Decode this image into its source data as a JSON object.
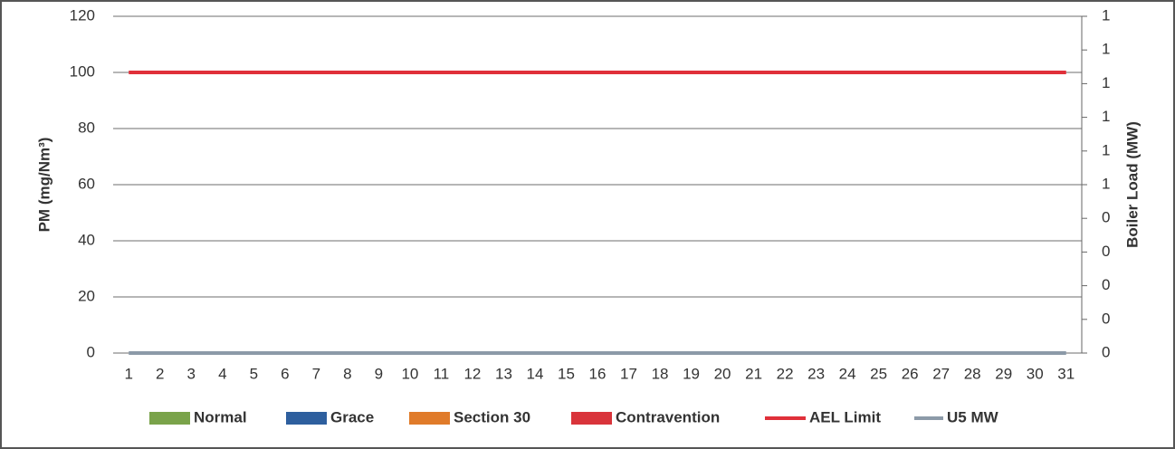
{
  "chart_data": {
    "type": "bar",
    "y_label": "PM (mg/Nm³)",
    "y2_label": "Boiler Load (MW)",
    "categories": [
      "1",
      "2",
      "3",
      "4",
      "5",
      "6",
      "7",
      "8",
      "9",
      "10",
      "11",
      "12",
      "13",
      "14",
      "15",
      "16",
      "17",
      "18",
      "19",
      "20",
      "21",
      "22",
      "23",
      "24",
      "25",
      "26",
      "27",
      "28",
      "29",
      "30",
      "31"
    ],
    "ylim": [
      0,
      120
    ],
    "yticks": [
      0,
      20,
      40,
      60,
      80,
      100,
      120
    ],
    "y2lim": [
      0,
      1
    ],
    "y2ticks": [
      0,
      {
        "value": 0.1,
        "label": "0"
      },
      {
        "value": 0.2,
        "label": "0"
      },
      {
        "value": 0.3,
        "label": "0"
      },
      {
        "value": 0.4,
        "label": "0"
      },
      {
        "value": 0.5,
        "label": "1"
      },
      {
        "value": 0.6,
        "label": "1"
      },
      {
        "value": 0.7,
        "label": "1"
      },
      {
        "value": 0.8,
        "label": "1"
      },
      {
        "value": 0.9,
        "label": "1"
      },
      1
    ],
    "grid": true,
    "legend": "bottom",
    "series": [
      {
        "name": "Normal",
        "color": "#7aa34a",
        "type": "bar",
        "values": [
          0,
          0,
          0,
          0,
          0,
          0,
          0,
          0,
          0,
          0,
          0,
          0,
          0,
          0,
          0,
          0,
          0,
          0,
          0,
          0,
          0,
          0,
          0,
          0,
          0,
          0,
          0,
          0,
          0,
          0,
          0
        ]
      },
      {
        "name": "Grace",
        "color": "#2e5f9e",
        "type": "bar",
        "values": [
          0,
          0,
          0,
          0,
          0,
          0,
          0,
          0,
          0,
          0,
          0,
          0,
          0,
          0,
          0,
          0,
          0,
          0,
          0,
          0,
          0,
          0,
          0,
          0,
          0,
          0,
          0,
          0,
          0,
          0,
          0
        ]
      },
      {
        "name": "Section 30",
        "color": "#e07b2a",
        "type": "bar",
        "values": [
          0,
          0,
          0,
          0,
          0,
          0,
          0,
          0,
          0,
          0,
          0,
          0,
          0,
          0,
          0,
          0,
          0,
          0,
          0,
          0,
          0,
          0,
          0,
          0,
          0,
          0,
          0,
          0,
          0,
          0,
          0
        ]
      },
      {
        "name": "Contravention",
        "color": "#d9343b",
        "type": "bar",
        "values": [
          0,
          0,
          0,
          0,
          0,
          0,
          0,
          0,
          0,
          0,
          0,
          0,
          0,
          0,
          0,
          0,
          0,
          0,
          0,
          0,
          0,
          0,
          0,
          0,
          0,
          0,
          0,
          0,
          0,
          0,
          0
        ]
      },
      {
        "name": "AEL Limit",
        "color": "#e0303a",
        "type": "line",
        "values": [
          100,
          100,
          100,
          100,
          100,
          100,
          100,
          100,
          100,
          100,
          100,
          100,
          100,
          100,
          100,
          100,
          100,
          100,
          100,
          100,
          100,
          100,
          100,
          100,
          100,
          100,
          100,
          100,
          100,
          100,
          100
        ]
      },
      {
        "name": "U5 MW",
        "color": "#8c9aa8",
        "type": "line",
        "axis": "y2",
        "values": [
          0,
          0,
          0,
          0,
          0,
          0,
          0,
          0,
          0,
          0,
          0,
          0,
          0,
          0,
          0,
          0,
          0,
          0,
          0,
          0,
          0,
          0,
          0,
          0,
          0,
          0,
          0,
          0,
          0,
          0,
          0
        ]
      }
    ]
  }
}
